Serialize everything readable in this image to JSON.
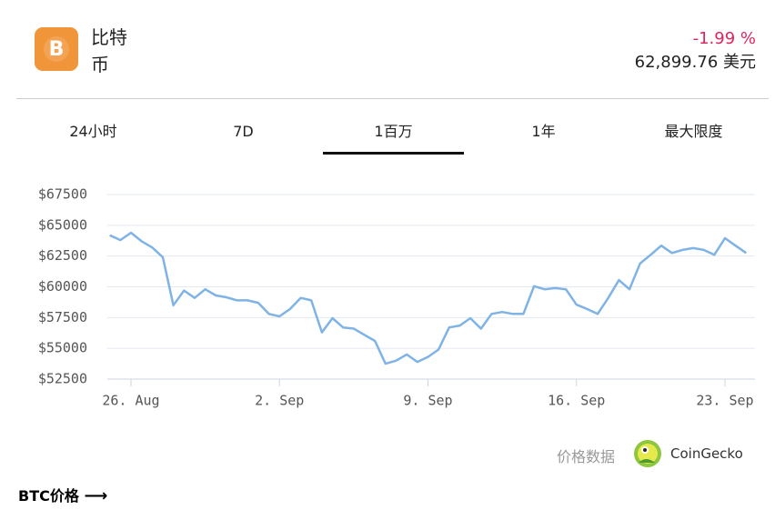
{
  "header": {
    "name": "比特币",
    "change": "-1.99 %",
    "price": "62,899.76 美元"
  },
  "tabs": {
    "items": [
      "24小时",
      "7D",
      "1百万",
      "1年",
      "最大限度"
    ],
    "active": 2
  },
  "chart_data": {
    "type": "line",
    "x": [
      "Aug 25 00:00",
      "Aug 25 12:00",
      "Aug 26 00:00",
      "Aug 26 12:00",
      "Aug 27 00:00",
      "Aug 27 12:00",
      "Aug 28 00:00",
      "Aug 28 12:00",
      "Aug 29 00:00",
      "Aug 29 12:00",
      "Aug 30 00:00",
      "Aug 30 12:00",
      "Aug 31 00:00",
      "Aug 31 12:00",
      "Sep 1 00:00",
      "Sep 1 12:00",
      "Sep 2 00:00",
      "Sep 2 12:00",
      "Sep 3 00:00",
      "Sep 3 12:00",
      "Sep 4 00:00",
      "Sep 4 12:00",
      "Sep 5 00:00",
      "Sep 5 12:00",
      "Sep 6 00:00",
      "Sep 6 12:00",
      "Sep 7 00:00",
      "Sep 7 12:00",
      "Sep 8 00:00",
      "Sep 8 12:00",
      "Sep 9 00:00",
      "Sep 9 12:00",
      "Sep 10 00:00",
      "Sep 10 12:00",
      "Sep 11 00:00",
      "Sep 11 12:00",
      "Sep 12 00:00",
      "Sep 12 12:00",
      "Sep 13 00:00",
      "Sep 13 12:00",
      "Sep 14 00:00",
      "Sep 14 12:00",
      "Sep 15 00:00",
      "Sep 15 12:00",
      "Sep 16 00:00",
      "Sep 16 12:00",
      "Sep 17 00:00",
      "Sep 17 12:00",
      "Sep 18 00:00",
      "Sep 18 12:00",
      "Sep 19 00:00",
      "Sep 19 12:00",
      "Sep 20 00:00",
      "Sep 20 12:00",
      "Sep 21 00:00",
      "Sep 21 12:00",
      "Sep 22 00:00",
      "Sep 22 12:00",
      "Sep 23 00:00",
      "Sep 23 12:00",
      "Sep 24 00:00"
    ],
    "series": [
      {
        "name": "BTC",
        "color": "#7fb3e6",
        "values": [
          64200,
          63800,
          64400,
          63700,
          63200,
          62400,
          58500,
          59700,
          59100,
          59800,
          59300,
          59150,
          58900,
          58900,
          58700,
          57800,
          57600,
          58200,
          59100,
          58900,
          56300,
          57450,
          56700,
          56600,
          56100,
          55600,
          53750,
          54000,
          54500,
          53900,
          54300,
          54900,
          56700,
          56850,
          57450,
          56600,
          57800,
          57950,
          57800,
          57800,
          60050,
          59800,
          59900,
          59800,
          58550,
          58200,
          57800,
          59100,
          60550,
          59800,
          61900,
          62600,
          63350,
          62750,
          63000,
          63150,
          63000,
          62600,
          63950,
          63350,
          62750
        ]
      }
    ],
    "xlim": [
      "Aug 24 21:15",
      "Sep 24 10:00"
    ],
    "xticks": [
      {
        "value": "Aug 26 00:00",
        "label": "26. Aug"
      },
      {
        "value": "Sep 2 00:00",
        "label": "2. Sep"
      },
      {
        "value": "Sep 9 00:00",
        "label": "9. Sep"
      },
      {
        "value": "Sep 16 00:00",
        "label": "16. Sep"
      },
      {
        "value": "Sep 23 00:00",
        "label": "23. Sep"
      }
    ],
    "ylim": [
      52500,
      67500
    ],
    "yticks": [
      {
        "value": 52500,
        "label": "$52500"
      },
      {
        "value": 55000,
        "label": "$55000"
      },
      {
        "value": 57500,
        "label": "$57500"
      },
      {
        "value": 60000,
        "label": "$60000"
      },
      {
        "value": 62500,
        "label": "$62500"
      },
      {
        "value": 65000,
        "label": "$65000"
      },
      {
        "value": 67500,
        "label": "$67500"
      }
    ],
    "grid": true
  },
  "attribution": {
    "text": "价格数据",
    "source": "CoinGecko"
  },
  "footer": {
    "link": "BTC价格"
  }
}
